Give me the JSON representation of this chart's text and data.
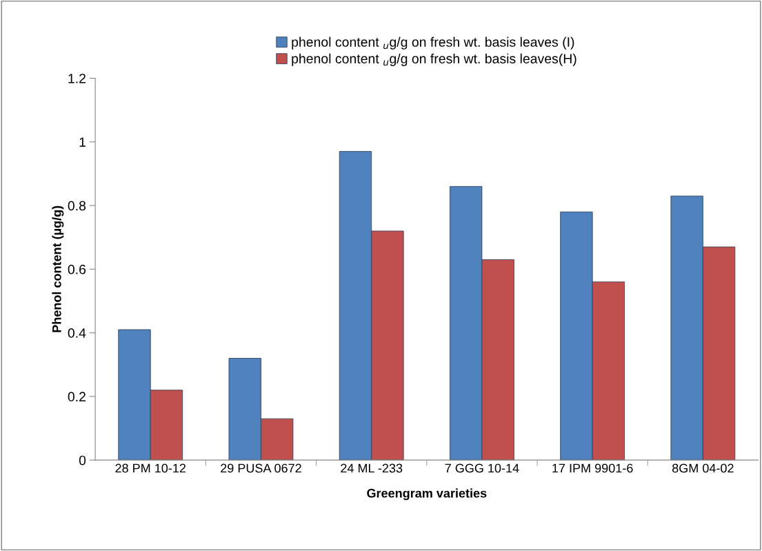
{
  "chart_data": {
    "type": "bar",
    "xlabel": "Greengram varieties",
    "ylabel": "Phenol content (µg/g)",
    "categories": [
      "28 PM 10-12",
      "29 PUSA 0672",
      "24 ML -233",
      "7 GGG 10-14",
      "17 IPM 9901-6",
      "8GM 04-02"
    ],
    "series": [
      {
        "name": "phenol content $_{u}$g/g on fresh wt. basis leaves (I)",
        "color": "#4f81bd",
        "values": [
          0.41,
          0.32,
          0.97,
          0.86,
          0.78,
          0.83
        ]
      },
      {
        "name": "phenol content $_{u}$g/g on fresh wt. basis leaves(H)",
        "color": "#c0504d",
        "values": [
          0.22,
          0.13,
          0.72,
          0.63,
          0.56,
          0.67
        ]
      }
    ],
    "ylim": [
      0,
      1.2
    ],
    "yticks": [
      0,
      0.2,
      0.4,
      0.6,
      0.8,
      1,
      1.2
    ],
    "grid": false,
    "legend": "top"
  }
}
